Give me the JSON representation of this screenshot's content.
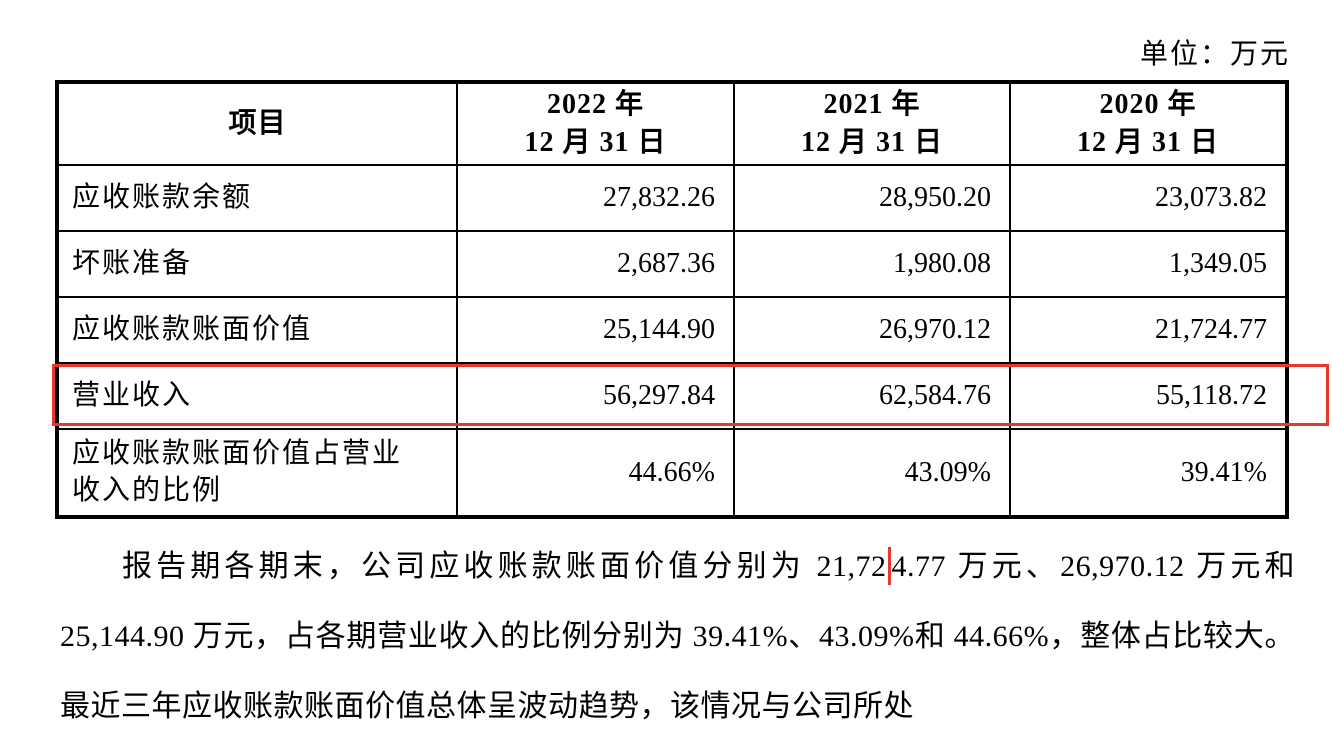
{
  "unit_label": "单位：万元",
  "colors": {
    "highlight_red": "#e8382d",
    "text": "#000000",
    "table_border": "#000000"
  },
  "table": {
    "headers": [
      "项目",
      "2022 年\n12 月 31 日",
      "2021 年\n12 月 31 日",
      "2020 年\n12 月 31 日"
    ],
    "rows": [
      {
        "label": "应收账款余额",
        "values": [
          "27,832.26",
          "28,950.20",
          "23,073.82"
        ],
        "highlighted": false
      },
      {
        "label": "坏账准备",
        "values": [
          "2,687.36",
          "1,980.08",
          "1,349.05"
        ],
        "highlighted": false
      },
      {
        "label": "应收账款账面价值",
        "values": [
          "25,144.90",
          "26,970.12",
          "21,724.77"
        ],
        "highlighted": false
      },
      {
        "label": "营业收入",
        "values": [
          "56,297.84",
          "62,584.76",
          "55,118.72"
        ],
        "highlighted": true
      },
      {
        "label": "应收账款账面价值占营业\n收入的比例",
        "values": [
          "44.66%",
          "43.09%",
          "39.41%"
        ],
        "highlighted": false
      }
    ]
  },
  "paragraph": {
    "segment_before_marker": "报告期各期末，公司应收账款账面价值分别为 21,72",
    "segment_after_marker": "4.77 万元、26,970.12 万元和 25,144.90 万元，占各期营业收入的比例分别为 39.41%、43.09%和 44.66%，整体占比较大。最近三年应收账款账面价值总体呈波动趋势，该情况与公司所处"
  }
}
